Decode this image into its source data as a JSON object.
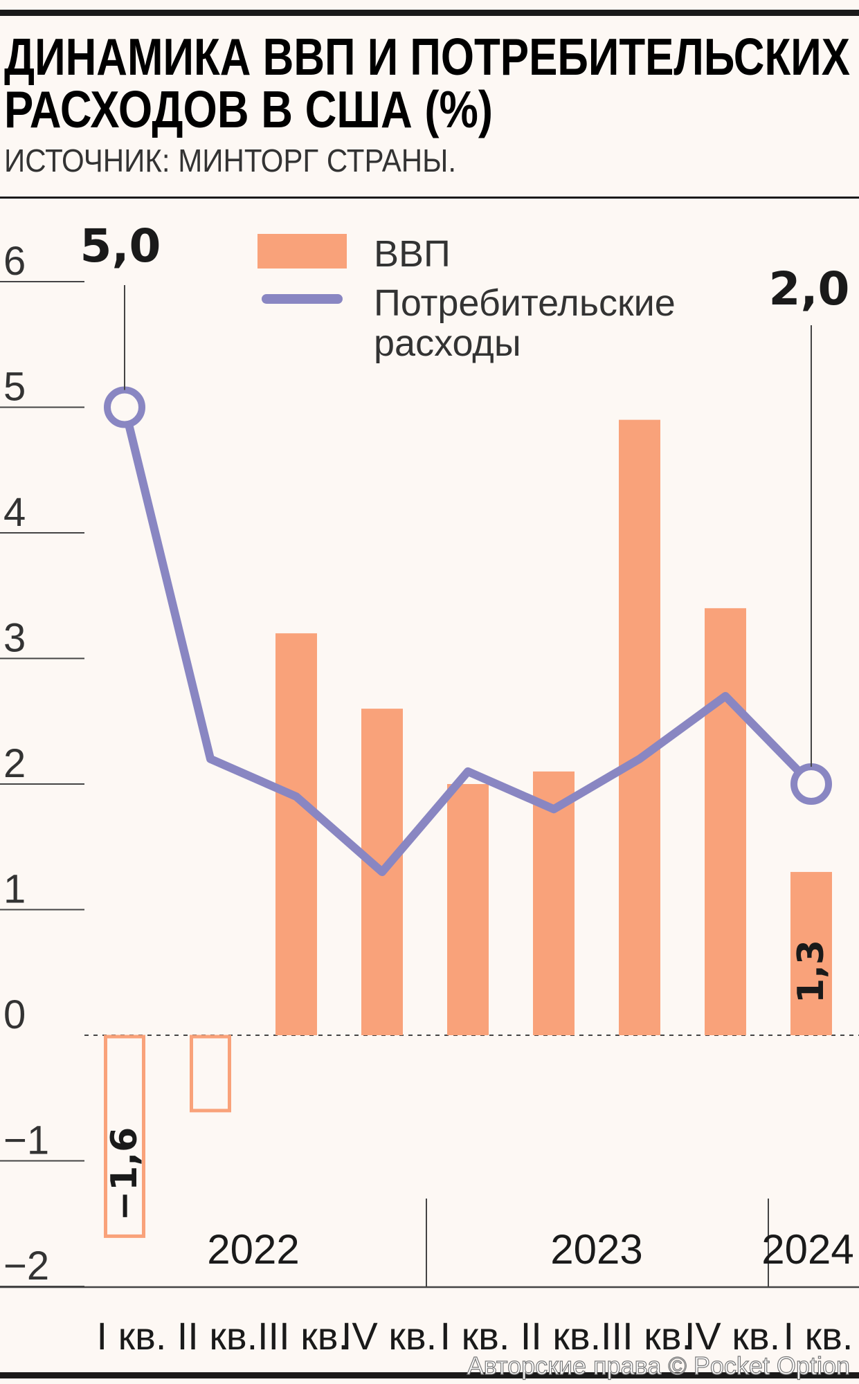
{
  "title_line1": "ДИНАМИКА ВВП И ПОТРЕБИТЕЛЬСКИХ",
  "title_line2": "РАСХОДОВ В США (%)",
  "subtitle": "ИСТОЧНИК: МИНТОРГ СТРАНЫ.",
  "copyright": "Авторские права © Pocket Option",
  "colors": {
    "gdp": "#f9a27a",
    "consumer": "#8986c2",
    "text": "#1a1a1a"
  },
  "chart_data": {
    "type": "bar",
    "categories": [
      "I кв.",
      "II кв.",
      "III кв.",
      "IV кв.",
      "I кв.",
      "II кв.",
      "III кв.",
      "IV кв.",
      "I кв."
    ],
    "years": [
      {
        "label": "2022",
        "from": 0,
        "to": 3
      },
      {
        "label": "2023",
        "from": 4,
        "to": 7
      },
      {
        "label": "2024",
        "from": 8,
        "to": 8
      }
    ],
    "ylim": [
      -2,
      6
    ],
    "yticks": [
      "−2",
      "−1",
      "0",
      "1",
      "2",
      "3",
      "4",
      "5",
      "6"
    ],
    "series": [
      {
        "name": "ВВП",
        "kind": "bar",
        "values": [
          -1.6,
          -0.6,
          3.2,
          2.6,
          2.0,
          2.1,
          4.9,
          3.4,
          1.3
        ]
      },
      {
        "name": "Потребительские расходы",
        "kind": "line",
        "values": [
          5.0,
          2.2,
          1.9,
          1.3,
          2.1,
          1.8,
          2.2,
          2.7,
          2.0
        ]
      }
    ],
    "labels": {
      "consumer_first": "5,0",
      "consumer_last": "2,0",
      "gdp_first": "−1,6",
      "gdp_last": "1,3"
    },
    "legend": {
      "gdp": "ВВП",
      "consumer_line1": "Потребительские",
      "consumer_line2": "расходы"
    },
    "legend_position": "top-center",
    "negative_bars_outlined": true
  }
}
